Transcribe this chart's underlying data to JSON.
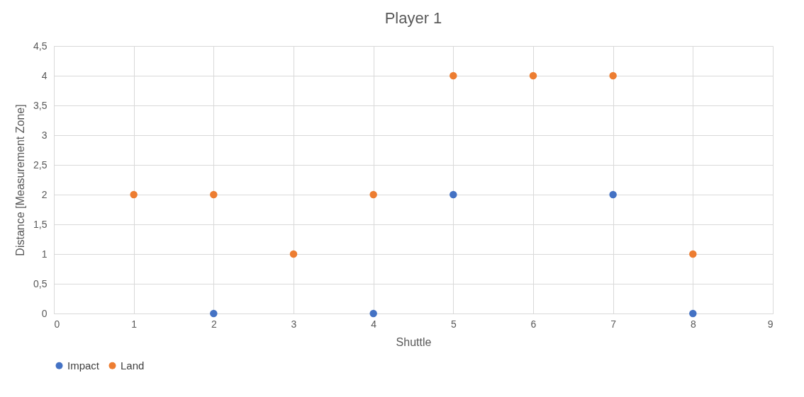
{
  "chart_data": {
    "type": "scatter",
    "title": "Player 1",
    "xlabel": "Shuttle",
    "ylabel": "Distance [Measurement Zone]",
    "xlim": [
      0,
      9
    ],
    "xticks": [
      0,
      1,
      2,
      3,
      4,
      5,
      6,
      7,
      8,
      9
    ],
    "ylim": [
      0,
      4.5
    ],
    "yticks": [
      0,
      {
        "value": 0.5,
        "label": "0,5"
      },
      1,
      {
        "value": 1.5,
        "label": "1,5"
      },
      2,
      {
        "value": 2.5,
        "label": "2,5"
      },
      3,
      {
        "value": 3.5,
        "label": "3,5"
      },
      4,
      {
        "value": 4.5,
        "label": "4,5"
      }
    ],
    "grid": true,
    "legend": "bottom",
    "marker": "circle",
    "series": [
      {
        "name": "Impact",
        "color": "#4472c4",
        "x": [
          2,
          4,
          5,
          7,
          8
        ],
        "values": [
          0,
          0,
          2,
          2,
          0
        ]
      },
      {
        "name": "Land",
        "color": "#ed7d31",
        "x": [
          1,
          2,
          3,
          4,
          5,
          6,
          7,
          8
        ],
        "values": [
          2,
          2,
          1,
          2,
          4,
          4,
          4,
          1
        ]
      }
    ]
  }
}
